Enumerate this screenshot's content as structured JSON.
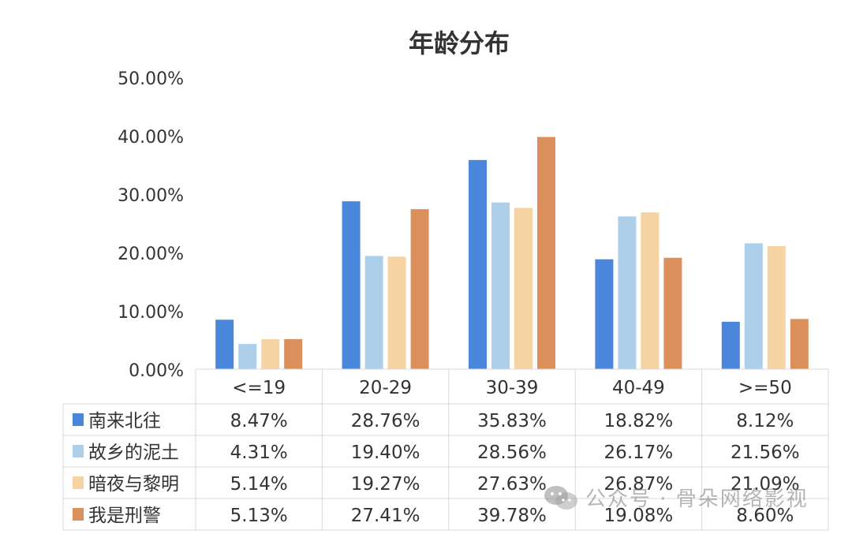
{
  "chart_data": {
    "type": "bar",
    "title": "年龄分布",
    "categories": [
      "<=19",
      "20-29",
      "30-39",
      "40-49",
      ">=50"
    ],
    "ylim": [
      0,
      50
    ],
    "yticks": [
      "0.00%",
      "10.00%",
      "20.00%",
      "30.00%",
      "40.00%",
      "50.00%"
    ],
    "grid": false,
    "legend": "left-in-table",
    "series": [
      {
        "name": "南来北往",
        "color": "#4A86DA",
        "values": [
          8.47,
          28.76,
          35.83,
          18.82,
          8.12
        ],
        "labels": [
          "8.47%",
          "28.76%",
          "35.83%",
          "18.82%",
          "8.12%"
        ]
      },
      {
        "name": "故乡的泥土",
        "color": "#AECFEA",
        "values": [
          4.31,
          19.4,
          28.56,
          26.17,
          21.56
        ],
        "labels": [
          "4.31%",
          "19.40%",
          "28.56%",
          "26.17%",
          "21.56%"
        ]
      },
      {
        "name": "暗夜与黎明",
        "color": "#F5D3A3",
        "values": [
          5.14,
          19.27,
          27.63,
          26.87,
          21.09
        ],
        "labels": [
          "5.14%",
          "19.27%",
          "27.63%",
          "26.87%",
          "21.09%"
        ]
      },
      {
        "name": "我是刑警",
        "color": "#DB8F5A",
        "values": [
          5.13,
          27.41,
          39.78,
          19.08,
          8.6
        ],
        "labels": [
          "5.13%",
          "27.41%",
          "39.78%",
          "19.08%",
          "8.60%"
        ]
      }
    ]
  },
  "watermark": {
    "text": "公众号 · 骨朵网络影视",
    "icon": "wechat-icon"
  }
}
